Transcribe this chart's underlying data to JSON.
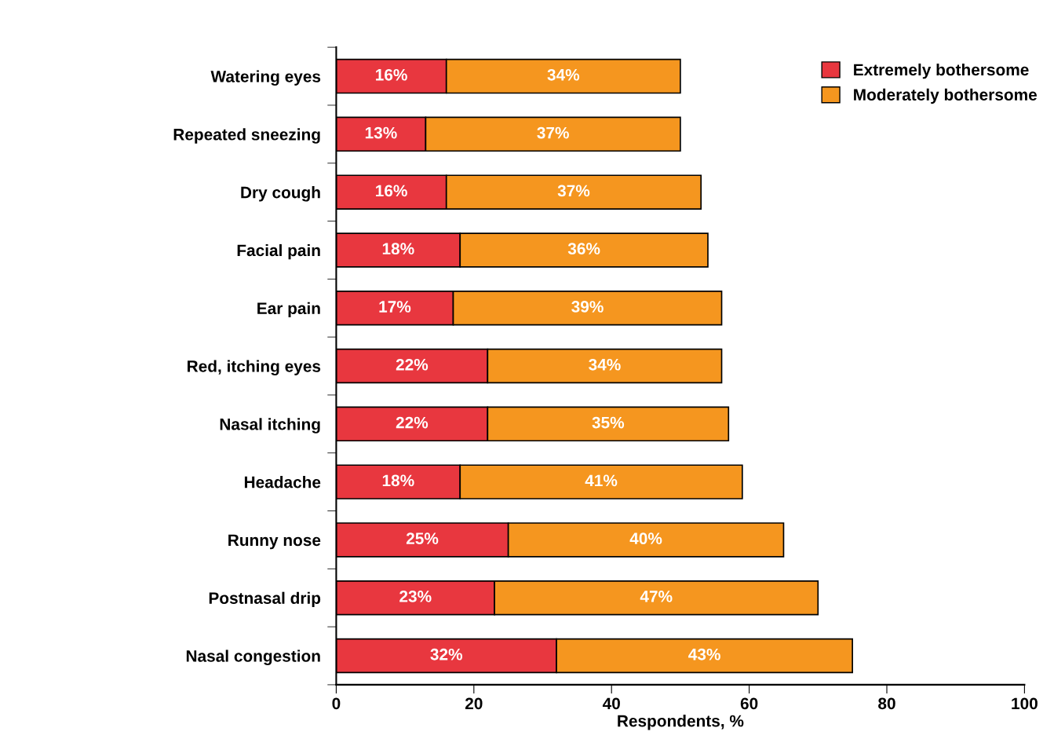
{
  "chart_data": {
    "type": "bar",
    "orientation": "horizontal",
    "stacked": true,
    "xlabel": "Respondents, %",
    "categories": [
      "Watering eyes",
      "Repeated sneezing",
      "Dry cough",
      "Facial pain",
      "Ear pain",
      "Red, itching eyes",
      "Nasal itching",
      "Headache",
      "Runny nose",
      "Postnasal drip",
      "Nasal congestion"
    ],
    "series": [
      {
        "name": "Extremely bothersome",
        "color": "#e8373f",
        "values": [
          16,
          13,
          16,
          18,
          17,
          22,
          22,
          18,
          25,
          23,
          32
        ],
        "value_labels": [
          "16%",
          "13%",
          "16%",
          "18%",
          "17%",
          "22%",
          "22%",
          "18%",
          "25%",
          "23%",
          "32%"
        ]
      },
      {
        "name": "Moderately bothersome",
        "color": "#f5961f",
        "values": [
          34,
          37,
          37,
          36,
          39,
          34,
          35,
          41,
          40,
          47,
          43
        ],
        "value_labels": [
          "34%",
          "37%",
          "37%",
          "36%",
          "39%",
          "34%",
          "35%",
          "41%",
          "40%",
          "47%",
          "43%"
        ]
      }
    ],
    "xlim": [
      0,
      100
    ],
    "xticks": [
      0,
      20,
      40,
      60,
      80,
      100
    ],
    "grid": false,
    "legend": "top right"
  }
}
